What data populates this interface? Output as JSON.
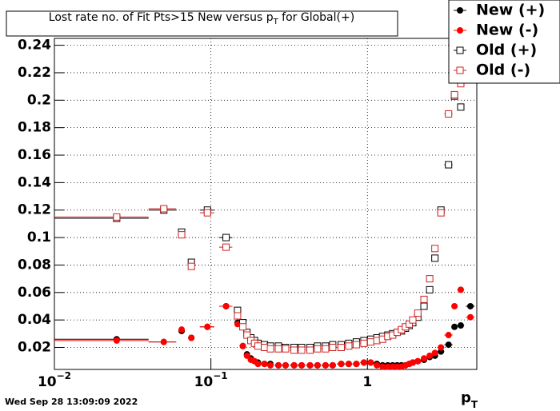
{
  "chart_data": {
    "type": "scatter",
    "title": [
      "Lost rate no. of Fit Pts>15 New versus p",
      "T",
      " for Global(+)"
    ],
    "xlabel": [
      "p",
      "T"
    ],
    "timestamp": "Wed Sep 28 13:09:09 2022",
    "xlog": true,
    "grid": true,
    "legend": "top-right",
    "xlim": [
      0.01,
      5
    ],
    "ylim": [
      0.004,
      0.245
    ],
    "xticks": [
      {
        "value": 0.01,
        "label": "10",
        "exponent": "−2"
      },
      {
        "value": 0.1,
        "label": "10",
        "exponent": "−1"
      },
      {
        "value": 1,
        "label": "1"
      }
    ],
    "yticks": [
      0.02,
      0.04,
      0.06,
      0.08,
      0.1,
      0.12,
      0.14,
      0.16,
      0.18,
      0.2,
      0.22,
      0.24
    ],
    "x": [
      0.025,
      0.05,
      0.065,
      0.075,
      0.095,
      0.125,
      0.148,
      0.16,
      0.17,
      0.18,
      0.19,
      0.2,
      0.22,
      0.24,
      0.27,
      0.3,
      0.34,
      0.38,
      0.43,
      0.48,
      0.54,
      0.6,
      0.68,
      0.76,
      0.85,
      0.95,
      1.05,
      1.15,
      1.25,
      1.35,
      1.45,
      1.55,
      1.65,
      1.75,
      1.85,
      1.95,
      2.1,
      2.3,
      2.5,
      2.7,
      2.95,
      3.3,
      3.6,
      3.95,
      4.55
    ],
    "xerr": [
      0.015,
      0.01,
      0.003,
      0.003,
      0.01,
      0.012,
      0.004,
      0.005,
      0.005,
      0.005,
      0.005,
      0.005,
      0.01,
      0.01,
      0.015,
      0.015,
      0.02,
      0.02,
      0.025,
      0.025,
      0.03,
      0.03,
      0.04,
      0.04,
      0.045,
      0.05,
      0.05,
      0.05,
      0.05,
      0.05,
      0.05,
      0.05,
      0.05,
      0.05,
      0.05,
      0.05,
      0.1,
      0.1,
      0.1,
      0.1,
      0.15,
      0.2,
      0.15,
      0.2,
      0.3
    ],
    "series": [
      {
        "name": "New (+)",
        "color": "#000000",
        "marker": "circle",
        "values": [
          0.026,
          0.024,
          0.032,
          0.027,
          0.035,
          0.05,
          0.038,
          0.021,
          0.015,
          0.012,
          0.01,
          0.009,
          0.008,
          0.008,
          0.007,
          0.007,
          0.007,
          0.007,
          0.007,
          0.007,
          0.007,
          0.007,
          0.008,
          0.008,
          0.008,
          0.009,
          0.009,
          0.008,
          0.007,
          0.007,
          0.007,
          0.007,
          0.007,
          0.007,
          0.008,
          0.009,
          0.01,
          0.011,
          0.013,
          0.014,
          0.017,
          0.022,
          0.035,
          0.036,
          0.05
        ]
      },
      {
        "name": "New (-)",
        "color": "#ff0000",
        "marker": "circle",
        "values": [
          0.025,
          0.024,
          0.033,
          0.027,
          0.035,
          0.05,
          0.037,
          0.021,
          0.014,
          0.011,
          0.01,
          0.008,
          0.008,
          0.007,
          0.007,
          0.007,
          0.007,
          0.007,
          0.007,
          0.007,
          0.007,
          0.007,
          0.008,
          0.008,
          0.008,
          0.009,
          0.009,
          0.007,
          0.006,
          0.006,
          0.006,
          0.006,
          0.006,
          0.007,
          0.008,
          0.009,
          0.01,
          0.012,
          0.014,
          0.016,
          0.02,
          0.029,
          0.05,
          0.062,
          0.042
        ]
      },
      {
        "name": "Old (+)",
        "color": "#000000",
        "marker": "square-open",
        "values": [
          0.114,
          0.12,
          0.104,
          0.082,
          0.12,
          0.1,
          0.047,
          0.038,
          0.031,
          0.027,
          0.025,
          0.023,
          0.022,
          0.021,
          0.021,
          0.02,
          0.02,
          0.02,
          0.02,
          0.021,
          0.021,
          0.022,
          0.022,
          0.023,
          0.024,
          0.025,
          0.026,
          0.027,
          0.028,
          0.029,
          0.03,
          0.031,
          0.032,
          0.034,
          0.036,
          0.038,
          0.042,
          0.05,
          0.062,
          0.085,
          0.12,
          0.153,
          0.203,
          0.195,
          0.23
        ]
      },
      {
        "name": "Old (-)",
        "color": "#cc2222",
        "marker": "square-open",
        "values": [
          0.115,
          0.121,
          0.102,
          0.079,
          0.118,
          0.093,
          0.043,
          0.035,
          0.029,
          0.025,
          0.023,
          0.021,
          0.02,
          0.019,
          0.019,
          0.019,
          0.018,
          0.018,
          0.018,
          0.019,
          0.019,
          0.02,
          0.02,
          0.021,
          0.022,
          0.023,
          0.024,
          0.025,
          0.026,
          0.028,
          0.029,
          0.031,
          0.033,
          0.035,
          0.037,
          0.04,
          0.045,
          0.055,
          0.07,
          0.092,
          0.118,
          0.19,
          0.204,
          0.212,
          0.215
        ]
      }
    ]
  }
}
